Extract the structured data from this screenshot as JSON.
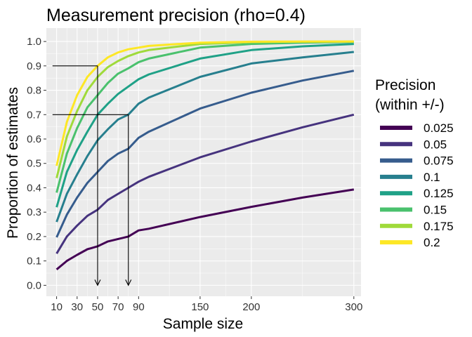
{
  "chart_data": {
    "type": "line",
    "title": "Measurement precision (rho=0.4)",
    "xlabel": "Sample size",
    "ylabel": "Proportion of estimates",
    "xlim": [
      0,
      307
    ],
    "ylim": [
      -0.045,
      1.055
    ],
    "x_ticks": [
      10,
      30,
      50,
      70,
      90,
      150,
      200,
      300
    ],
    "y_ticks": [
      0.0,
      0.1,
      0.2,
      0.3,
      0.4,
      0.5,
      0.6,
      0.7,
      0.8,
      0.9,
      1.0
    ],
    "grid": true,
    "legend": {
      "title_line1": "Precision",
      "title_line2": "(within +/-)",
      "placement": "right"
    },
    "x": [
      10,
      20,
      30,
      40,
      50,
      60,
      70,
      80,
      90,
      100,
      150,
      200,
      250,
      300
    ],
    "series": [
      {
        "name": "0.025",
        "color": "#440154",
        "values": [
          0.065,
          0.1,
          0.125,
          0.148,
          0.16,
          0.18,
          0.19,
          0.2,
          0.225,
          0.232,
          0.28,
          0.322,
          0.36,
          0.393
        ]
      },
      {
        "name": "0.05",
        "color": "#46337E",
        "values": [
          0.13,
          0.2,
          0.245,
          0.285,
          0.31,
          0.35,
          0.375,
          0.4,
          0.425,
          0.445,
          0.525,
          0.59,
          0.648,
          0.7
        ]
      },
      {
        "name": "0.075",
        "color": "#365C8D",
        "values": [
          0.197,
          0.29,
          0.36,
          0.42,
          0.465,
          0.51,
          0.54,
          0.56,
          0.605,
          0.63,
          0.725,
          0.79,
          0.84,
          0.88
        ]
      },
      {
        "name": "0.1",
        "color": "#277F8E",
        "values": [
          0.26,
          0.375,
          0.455,
          0.53,
          0.595,
          0.64,
          0.68,
          0.7,
          0.745,
          0.77,
          0.855,
          0.91,
          0.935,
          0.957
        ]
      },
      {
        "name": "0.125",
        "color": "#1FA187",
        "values": [
          0.32,
          0.465,
          0.555,
          0.63,
          0.7,
          0.745,
          0.785,
          0.815,
          0.845,
          0.865,
          0.93,
          0.965,
          0.98,
          0.99
        ]
      },
      {
        "name": "0.15",
        "color": "#4AC16D",
        "values": [
          0.38,
          0.54,
          0.645,
          0.73,
          0.78,
          0.83,
          0.868,
          0.89,
          0.915,
          0.93,
          0.975,
          0.99,
          0.995,
          0.998
        ]
      },
      {
        "name": "0.175",
        "color": "#9FDA3A",
        "values": [
          0.44,
          0.61,
          0.715,
          0.8,
          0.855,
          0.895,
          0.92,
          0.94,
          0.955,
          0.965,
          0.99,
          0.997,
          0.999,
          1.0
        ]
      },
      {
        "name": "0.2",
        "color": "#FDE725",
        "values": [
          0.49,
          0.67,
          0.78,
          0.855,
          0.9,
          0.935,
          0.955,
          0.968,
          0.975,
          0.982,
          0.995,
          0.999,
          1.0,
          1.0
        ]
      }
    ],
    "annotations": [
      {
        "type": "reference",
        "x_from": 6,
        "level": 0.9,
        "x_at": 50
      },
      {
        "type": "reference",
        "x_from": 6,
        "level": 0.7,
        "x_at": 80
      }
    ]
  }
}
